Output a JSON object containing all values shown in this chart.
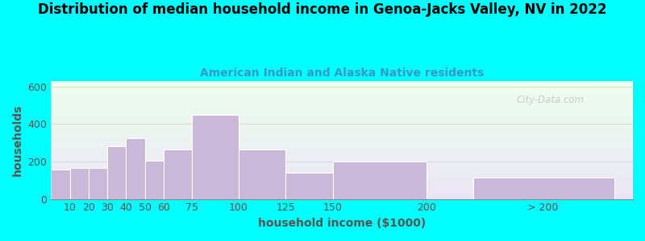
{
  "title": "Distribution of median household income in Genoa-Jacks Valley, NV in 2022",
  "subtitle": "American Indian and Alaska Native residents",
  "xlabel": "household income ($1000)",
  "ylabel": "households",
  "bar_labels": [
    "10",
    "20",
    "30",
    "40",
    "50",
    "60",
    "75",
    "100",
    "125",
    "150",
    "200",
    "> 200"
  ],
  "bar_heights": [
    155,
    165,
    165,
    280,
    325,
    205,
    265,
    450,
    265,
    140,
    200,
    115
  ],
  "bar_lefts": [
    0,
    10,
    20,
    30,
    40,
    50,
    60,
    75,
    100,
    125,
    150,
    225
  ],
  "bar_widths": [
    10,
    10,
    10,
    10,
    10,
    10,
    15,
    25,
    25,
    25,
    50,
    75
  ],
  "bar_color": "#c9b8d8",
  "bar_edge_color": "#ffffff",
  "bg_color": "#00ffff",
  "title_color": "#000000",
  "subtitle_color": "#3399cc",
  "axis_color": "#555555",
  "tick_color": "#555555",
  "ylim": [
    0,
    630
  ],
  "xlim": [
    0,
    310
  ],
  "yticks": [
    0,
    200,
    400,
    600
  ],
  "xtick_positions": [
    10,
    20,
    30,
    40,
    50,
    60,
    75,
    100,
    125,
    150,
    200,
    262
  ],
  "xtick_labels": [
    "10",
    "20",
    "30",
    "40",
    "50",
    "60",
    "75",
    "100",
    "125",
    "150",
    "200",
    "> 200"
  ],
  "title_fontsize": 12,
  "subtitle_fontsize": 10,
  "label_fontsize": 9,
  "watermark": "City-Data.com"
}
